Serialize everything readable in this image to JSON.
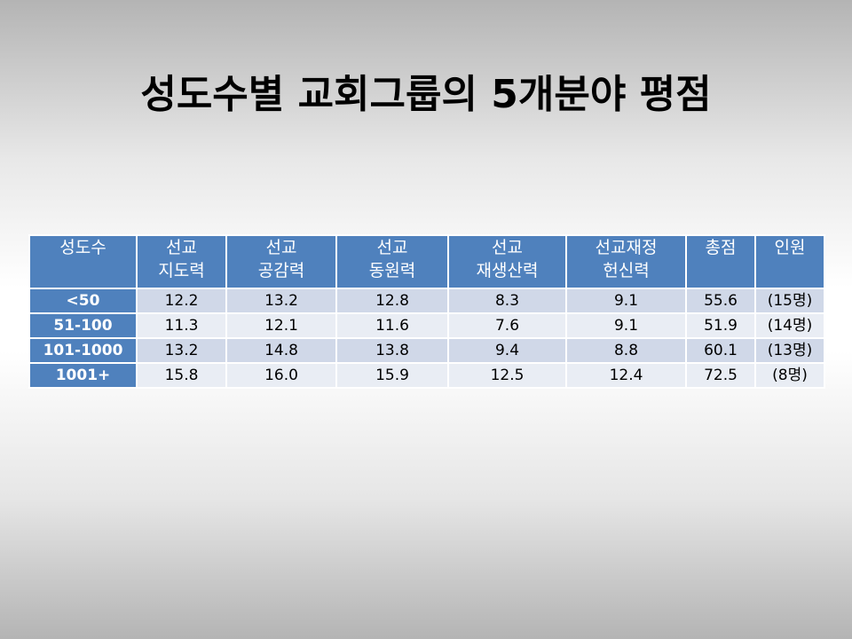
{
  "title": "성도수별 교회그룹의 5개분야 평점",
  "table": {
    "header": [
      [
        "성도수"
      ],
      [
        "선교",
        "지도력"
      ],
      [
        "선교",
        "공감력"
      ],
      [
        "선교",
        "동원력"
      ],
      [
        "선교",
        "재생산력"
      ],
      [
        "선교재정",
        "헌신력"
      ],
      [
        "총점"
      ],
      [
        "인원"
      ]
    ],
    "rows": [
      [
        "<50",
        "12.2",
        "13.2",
        "12.8",
        "8.3",
        "9.1",
        "55.6",
        "(15명)"
      ],
      [
        "51-100",
        "11.3",
        "12.1",
        "11.6",
        "7.6",
        "9.1",
        "51.9",
        "(14명)"
      ],
      [
        "101-1000",
        "13.2",
        "14.8",
        "13.8",
        "9.4",
        "8.8",
        "60.1",
        "(13명)"
      ],
      [
        "1001+",
        "15.8",
        "16.0",
        "15.9",
        "12.5",
        "12.4",
        "72.5",
        "(8명)"
      ]
    ]
  }
}
